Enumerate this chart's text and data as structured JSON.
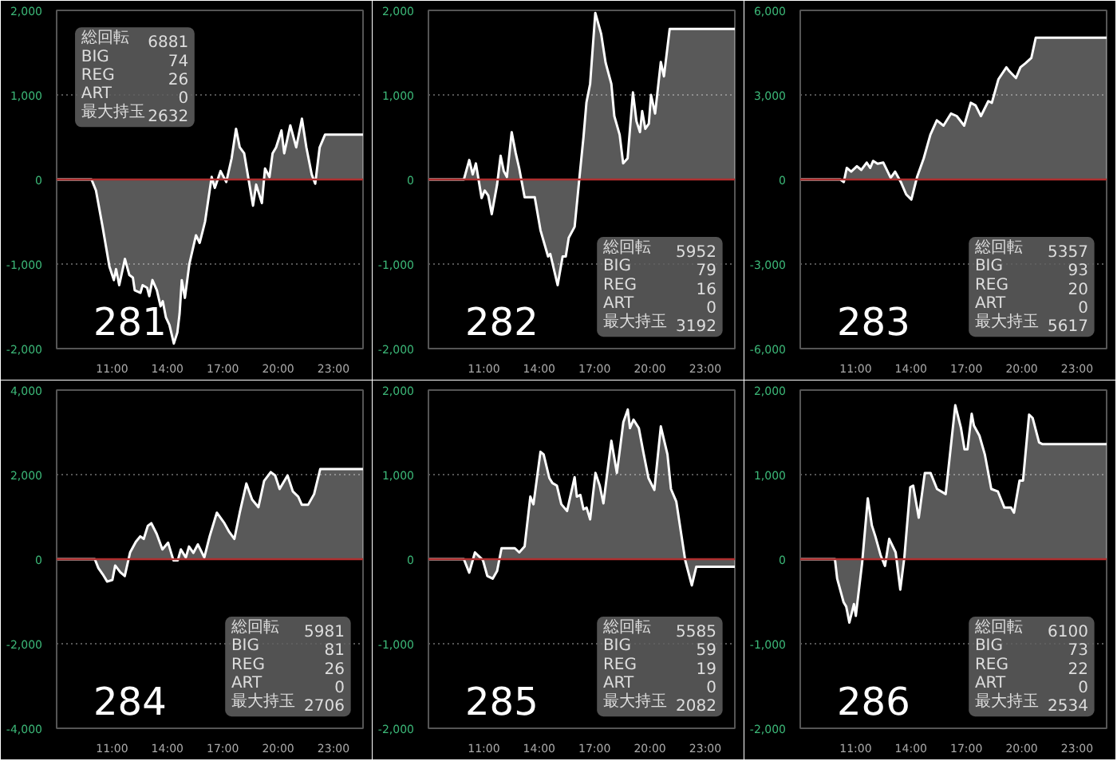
{
  "chart_data": [
    {
      "type": "area",
      "title": "281",
      "annotations": [
        "総回転 6881",
        "BIG 74",
        "REG 26",
        "ART 0",
        "最大持玉 2632"
      ],
      "x": [
        8.0,
        9.89,
        10.13,
        10.49,
        10.86,
        11.1,
        11.22,
        11.39,
        11.7,
        11.94,
        12.13,
        12.23,
        12.54,
        12.66,
        12.9,
        13.02,
        13.19,
        13.43,
        13.63,
        13.75,
        13.92,
        14.11,
        14.35,
        14.54,
        14.66,
        14.78,
        14.95,
        15.19,
        15.55,
        15.75,
        16.04,
        16.4,
        16.57,
        16.88,
        17.19,
        17.48,
        17.72,
        17.92,
        18.16,
        18.64,
        18.81,
        19.12,
        19.29,
        19.53,
        19.7,
        19.89,
        20.18,
        20.33,
        20.66,
        20.98,
        21.29,
        21.53,
        21.82,
        22.01,
        22.25,
        22.54,
        24.6
      ],
      "series": [
        {
          "color": "#ffffff",
          "values": [
            0,
            0,
            -130,
            -560,
            -1030,
            -1190,
            -1060,
            -1250,
            -940,
            -1130,
            -1160,
            -1310,
            -1340,
            -1250,
            -1280,
            -1380,
            -1190,
            -1310,
            -1500,
            -1440,
            -1630,
            -1720,
            -1940,
            -1810,
            -1590,
            -1190,
            -1400,
            -1000,
            -660,
            -750,
            -500,
            30,
            -100,
            100,
            -30,
            250,
            600,
            380,
            310,
            -310,
            -60,
            -280,
            130,
            30,
            310,
            380,
            580,
            310,
            640,
            380,
            720,
            380,
            60,
            -50,
            380,
            530,
            530
          ]
        }
      ],
      "xlim": [
        8,
        24.6
      ],
      "xticks": [
        {
          "value": 11,
          "label": "11:00"
        },
        {
          "value": 14,
          "label": "14:00"
        },
        {
          "value": 17,
          "label": "17:00"
        },
        {
          "value": 20,
          "label": "20:00"
        },
        {
          "value": 23,
          "label": "23:00"
        }
      ],
      "ylim": [
        -2000,
        2000
      ],
      "yticks": [
        {
          "value": -2000,
          "label": "-2,000"
        },
        {
          "value": -1000,
          "label": "-1,000"
        },
        0,
        {
          "value": 1000,
          "label": "1,000"
        },
        {
          "value": 2000,
          "label": "2,000"
        }
      ],
      "grid": "y",
      "ref_lines": [
        {
          "axis": "y",
          "value": 0,
          "color": "#b03030"
        }
      ]
    },
    {
      "type": "area",
      "title": "282",
      "annotations": [
        "総回転 5952",
        "BIG 79",
        "REG 16",
        "ART 0",
        "最大持玉 3192"
      ],
      "x": [
        8.0,
        9.92,
        10.21,
        10.4,
        10.57,
        10.88,
        11.05,
        11.24,
        11.43,
        11.72,
        11.91,
        12.08,
        12.25,
        12.51,
        12.73,
        12.92,
        13.21,
        13.76,
        14.07,
        14.48,
        14.6,
        15.0,
        15.27,
        15.44,
        15.6,
        15.92,
        16.23,
        16.4,
        16.56,
        16.76,
        17.04,
        17.36,
        17.6,
        17.91,
        18.07,
        18.36,
        18.55,
        18.79,
        19.08,
        19.27,
        19.46,
        19.58,
        19.75,
        19.94,
        20.06,
        20.28,
        20.59,
        20.76,
        21.07,
        24.6
      ],
      "series": [
        {
          "color": "#ffffff",
          "values": [
            0,
            0,
            230,
            60,
            190,
            -220,
            -130,
            -190,
            -410,
            -60,
            280,
            100,
            30,
            560,
            310,
            130,
            -210,
            -210,
            -600,
            -910,
            -880,
            -1250,
            -910,
            -910,
            -690,
            -560,
            130,
            500,
            910,
            1130,
            1970,
            1720,
            1380,
            1130,
            750,
            530,
            190,
            250,
            1030,
            690,
            560,
            810,
            600,
            660,
            1000,
            780,
            1390,
            1220,
            1780,
            1780
          ]
        }
      ],
      "xlim": [
        8,
        24.6
      ],
      "xticks": [
        {
          "value": 11,
          "label": "11:00"
        },
        {
          "value": 14,
          "label": "14:00"
        },
        {
          "value": 17,
          "label": "17:00"
        },
        {
          "value": 20,
          "label": "20:00"
        },
        {
          "value": 23,
          "label": "23:00"
        }
      ],
      "ylim": [
        -2000,
        2000
      ],
      "yticks": [
        {
          "value": -2000,
          "label": "-2,000"
        },
        {
          "value": -1000,
          "label": "-1,000"
        },
        0,
        {
          "value": 1000,
          "label": "1,000"
        },
        {
          "value": 2000,
          "label": "2,000"
        }
      ],
      "grid": "y",
      "ref_lines": [
        {
          "axis": "y",
          "value": 0,
          "color": "#b03030"
        }
      ]
    },
    {
      "type": "area",
      "title": "283",
      "annotations": [
        "総回転 5357",
        "BIG 93",
        "REG 20",
        "ART 0",
        "最大持玉 5617"
      ],
      "x": [
        8.0,
        10.17,
        10.36,
        10.52,
        10.76,
        11.07,
        11.31,
        11.6,
        11.79,
        11.95,
        12.19,
        12.5,
        12.9,
        13.14,
        13.45,
        13.74,
        14.02,
        14.33,
        14.69,
        15.05,
        15.4,
        15.76,
        16.17,
        16.48,
        16.88,
        17.24,
        17.5,
        17.79,
        18.19,
        18.38,
        18.74,
        19.17,
        19.33,
        19.69,
        19.93,
        20.21,
        20.52,
        20.76,
        24.6
      ],
      "series": [
        {
          "color": "#ffffff",
          "values": [
            0,
            0,
            -90,
            410,
            280,
            470,
            340,
            600,
            410,
            660,
            560,
            600,
            60,
            280,
            -90,
            -530,
            -710,
            90,
            750,
            1590,
            2100,
            1910,
            2340,
            2250,
            1910,
            2720,
            2630,
            2250,
            2780,
            2720,
            3560,
            3980,
            3840,
            3600,
            3980,
            4130,
            4310,
            5030,
            5030
          ]
        }
      ],
      "xlim": [
        8,
        24.6
      ],
      "xticks": [
        {
          "value": 11,
          "label": "11:00"
        },
        {
          "value": 14,
          "label": "14:00"
        },
        {
          "value": 17,
          "label": "17:00"
        },
        {
          "value": 20,
          "label": "20:00"
        },
        {
          "value": 23,
          "label": "23:00"
        }
      ],
      "ylim": [
        -6000,
        6000
      ],
      "yticks": [
        {
          "value": -6000,
          "label": "-6,000"
        },
        {
          "value": -3000,
          "label": "-3,000"
        },
        0,
        {
          "value": 3000,
          "label": "3,000"
        },
        {
          "value": 6000,
          "label": "6,000"
        }
      ],
      "grid": "y",
      "ref_lines": [
        {
          "axis": "y",
          "value": 0,
          "color": "#b03030"
        }
      ]
    },
    {
      "type": "area",
      "title": "284",
      "annotations": [
        "総回転 5981",
        "BIG 81",
        "REG 26",
        "ART 0",
        "最大持玉 2706"
      ],
      "x": [
        8.0,
        10.07,
        10.26,
        10.5,
        10.74,
        11.02,
        11.17,
        11.45,
        11.69,
        11.98,
        12.29,
        12.53,
        12.72,
        12.94,
        13.13,
        13.42,
        13.73,
        14.04,
        14.33,
        14.56,
        14.73,
        15.0,
        15.17,
        15.41,
        15.65,
        16.0,
        16.29,
        16.68,
        17.09,
        17.33,
        17.63,
        17.92,
        18.28,
        18.59,
        18.93,
        19.24,
        19.6,
        19.84,
        20.08,
        20.51,
        20.8,
        21.09,
        21.28,
        21.63,
        21.95,
        22.28,
        24.6
      ],
      "series": [
        {
          "color": "#ffffff",
          "values": [
            0,
            0,
            -210,
            -360,
            -530,
            -490,
            -150,
            -310,
            -400,
            160,
            410,
            540,
            480,
            790,
            850,
            600,
            230,
            390,
            -30,
            -30,
            230,
            40,
            300,
            150,
            350,
            40,
            540,
            1100,
            850,
            660,
            480,
            1100,
            1790,
            1410,
            1230,
            1850,
            2060,
            1980,
            1660,
            1980,
            1600,
            1480,
            1290,
            1290,
            1540,
            2130,
            2130
          ]
        }
      ],
      "xlim": [
        8,
        24.6
      ],
      "xticks": [
        {
          "value": 11,
          "label": "11:00"
        },
        {
          "value": 14,
          "label": "14:00"
        },
        {
          "value": 17,
          "label": "17:00"
        },
        {
          "value": 20,
          "label": "20:00"
        },
        {
          "value": 23,
          "label": "23:00"
        }
      ],
      "ylim": [
        -4000,
        4000
      ],
      "yticks": [
        {
          "value": -4000,
          "label": "-4,000"
        },
        {
          "value": -2000,
          "label": "-2,000"
        },
        0,
        {
          "value": 2000,
          "label": "2,000"
        },
        {
          "value": 4000,
          "label": "4,000"
        }
      ],
      "grid": "y",
      "ref_lines": [
        {
          "axis": "y",
          "value": 0,
          "color": "#b03030"
        }
      ]
    },
    {
      "type": "area",
      "title": "285",
      "annotations": [
        "総回転 5585",
        "BIG 59",
        "REG 19",
        "ART 0",
        "最大持玉 2082"
      ],
      "x": [
        8.0,
        9.92,
        10.21,
        10.52,
        10.95,
        11.19,
        11.48,
        11.72,
        11.96,
        12.68,
        12.92,
        13.21,
        13.52,
        13.69,
        14.07,
        14.24,
        14.55,
        14.72,
        14.96,
        15.2,
        15.51,
        15.92,
        16.04,
        16.23,
        16.4,
        16.57,
        16.76,
        17.05,
        17.28,
        17.48,
        17.91,
        18.21,
        18.56,
        18.8,
        18.92,
        19.11,
        19.4,
        19.64,
        19.92,
        20.24,
        20.59,
        20.95,
        21.14,
        21.43,
        21.91,
        22.27,
        22.51,
        24.6
      ],
      "series": [
        {
          "color": "#ffffff",
          "values": [
            0,
            0,
            -160,
            80,
            -10,
            -200,
            -230,
            -140,
            130,
            130,
            80,
            150,
            740,
            650,
            1270,
            1240,
            960,
            900,
            870,
            650,
            570,
            970,
            740,
            760,
            590,
            610,
            470,
            1020,
            870,
            660,
            1400,
            1020,
            1620,
            1770,
            1550,
            1650,
            1550,
            1270,
            960,
            820,
            1570,
            1240,
            830,
            680,
            -10,
            -310,
            -90,
            -90
          ]
        }
      ],
      "xlim": [
        8,
        24.6
      ],
      "xticks": [
        {
          "value": 11,
          "label": "11:00"
        },
        {
          "value": 14,
          "label": "14:00"
        },
        {
          "value": 17,
          "label": "17:00"
        },
        {
          "value": 20,
          "label": "20:00"
        },
        {
          "value": 23,
          "label": "23:00"
        }
      ],
      "ylim": [
        -2000,
        2000
      ],
      "yticks": [
        {
          "value": -2000,
          "label": "-2,000"
        },
        {
          "value": -1000,
          "label": "-1,000"
        },
        0,
        {
          "value": 1000,
          "label": "1,000"
        },
        {
          "value": 2000,
          "label": "2,000"
        }
      ],
      "grid": "y",
      "ref_lines": [
        {
          "axis": "y",
          "value": 0,
          "color": "#b03030"
        }
      ]
    },
    {
      "type": "area",
      "title": "286",
      "annotations": [
        "総回転 6100",
        "BIG 73",
        "REG 22",
        "ART 0",
        "最大持玉 2534"
      ],
      "x": [
        8.0,
        9.88,
        10.0,
        10.35,
        10.49,
        10.66,
        10.91,
        11.01,
        11.35,
        11.66,
        11.88,
        12.07,
        12.35,
        12.59,
        12.82,
        13.17,
        13.42,
        13.64,
        13.96,
        14.12,
        14.42,
        14.75,
        15.06,
        15.41,
        15.88,
        16.4,
        16.71,
        16.9,
        17.06,
        17.29,
        17.41,
        17.71,
        18.0,
        18.35,
        18.71,
        19.06,
        19.42,
        19.58,
        19.88,
        20.07,
        20.4,
        20.59,
        20.94,
        21.13,
        24.6
      ],
      "series": [
        {
          "color": "#ffffff",
          "values": [
            0,
            0,
            -230,
            -510,
            -560,
            -750,
            -530,
            -670,
            -50,
            720,
            400,
            270,
            50,
            -80,
            240,
            80,
            -360,
            20,
            850,
            870,
            490,
            1020,
            1020,
            830,
            770,
            1820,
            1550,
            1300,
            1300,
            1720,
            1580,
            1460,
            1240,
            830,
            800,
            610,
            610,
            550,
            930,
            930,
            1710,
            1670,
            1380,
            1360,
            1360
          ]
        }
      ],
      "xlim": [
        8,
        24.6
      ],
      "xticks": [
        {
          "value": 11,
          "label": "11:00"
        },
        {
          "value": 14,
          "label": "14:00"
        },
        {
          "value": 17,
          "label": "17:00"
        },
        {
          "value": 20,
          "label": "20:00"
        },
        {
          "value": 23,
          "label": "23:00"
        }
      ],
      "ylim": [
        -2000,
        2000
      ],
      "yticks": [
        {
          "value": -2000,
          "label": "-2,000"
        },
        {
          "value": -1000,
          "label": "-1,000"
        },
        0,
        {
          "value": 1000,
          "label": "1,000"
        },
        {
          "value": 2000,
          "label": "2,000"
        }
      ],
      "grid": "y",
      "ref_lines": [
        {
          "axis": "y",
          "value": 0,
          "color": "#b03030"
        }
      ]
    }
  ]
}
